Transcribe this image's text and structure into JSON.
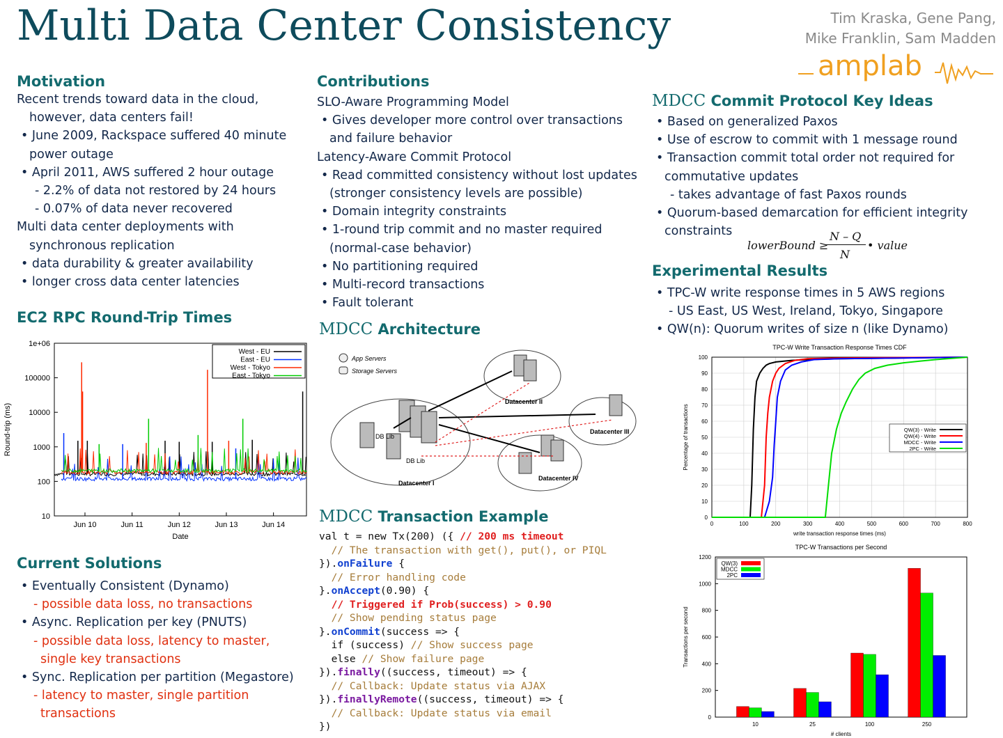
{
  "title": "Multi Data Center Consistency",
  "authors": [
    "Tim Kraska, Gene Pang,",
    "Mike Franklin, Sam Madden"
  ],
  "logo_text": "amplab",
  "motivation": {
    "heading": "Motivation",
    "lines": [
      "Recent trends toward data in the cloud,",
      "however, data centers fail!",
      "• June 2009, Rackspace suffered 40 minute",
      "power outage",
      "• April 2011, AWS suffered 2 hour outage",
      "- 2.2% of data not restored by 24 hours",
      "- 0.07% of data never recovered",
      "Multi data center deployments with",
      "synchronous replication",
      "• data durability & greater availability",
      "• longer cross data center latencies"
    ]
  },
  "ec2": {
    "heading": "EC2 RPC Round-Trip Times"
  },
  "current": {
    "heading": "Current Solutions",
    "items": [
      {
        "text": "• Eventually Consistent (Dynamo)",
        "red": false,
        "indent": 0
      },
      {
        "text": "- possible data loss, no transactions",
        "red": true,
        "indent": 1
      },
      {
        "text": "• Async. Replication per key (PNUTS)",
        "red": false,
        "indent": 0
      },
      {
        "text": "- possible data loss, latency to master,",
        "red": true,
        "indent": 1
      },
      {
        "text": "single key transactions",
        "red": true,
        "indent": 2
      },
      {
        "text": "• Sync. Replication per partition (Megastore)",
        "red": false,
        "indent": 0
      },
      {
        "text": "- latency to master, single partition",
        "red": true,
        "indent": 1
      },
      {
        "text": "transactions",
        "red": true,
        "indent": 2
      }
    ]
  },
  "contributions": {
    "heading": "Contributions",
    "lines": [
      "SLO-Aware Programming Model",
      "• Gives developer more control over transactions",
      "and failure behavior",
      "Latency-Aware Commit Protocol",
      "• Read committed consistency without lost updates",
      "(stronger consistency levels are possible)",
      "• Domain integrity constraints",
      "• 1-round trip commit and no master required",
      "(normal-case behavior)",
      "• No partitioning required",
      "• Multi-record transactions",
      "• Fault tolerant"
    ]
  },
  "architecture": {
    "heading_mdcc": "MDCC",
    "heading_rest": "Architecture",
    "legend": [
      "App Servers",
      "Storage Servers"
    ],
    "labels": [
      "DB Lib",
      "DB Lib",
      "Datacenter I",
      "Datacenter II",
      "Datacenter III",
      "Datacenter IV"
    ]
  },
  "txn": {
    "heading_mdcc": "MDCC",
    "heading_rest": "Transaction Example",
    "code": [
      [
        [
          "val t = new Tx(200) ({ ",
          ""
        ],
        [
          "// 200 ms timeout",
          "kw-red"
        ]
      ],
      [
        [
          "  // The transaction with get(), put(), or PIQL",
          "cmt"
        ]
      ],
      [
        [
          "}).",
          ""
        ],
        [
          "onFailure",
          "kw-blue"
        ],
        [
          " {",
          ""
        ]
      ],
      [
        [
          "  // Error handling code",
          "cmt"
        ]
      ],
      [
        [
          "}.",
          ""
        ],
        [
          "onAccept",
          "kw-blue"
        ],
        [
          "(0.90) {",
          ""
        ]
      ],
      [
        [
          "  // Triggered if Prob(success) > 0.90",
          "kw-red"
        ]
      ],
      [
        [
          "  // Show pending status page",
          "cmt"
        ]
      ],
      [
        [
          "}.",
          ""
        ],
        [
          "onCommit",
          "kw-blue"
        ],
        [
          "(success => {",
          ""
        ]
      ],
      [
        [
          "  if (success) ",
          ""
        ],
        [
          "// Show success page",
          "cmt"
        ]
      ],
      [
        [
          "  else ",
          ""
        ],
        [
          "// Show failure page",
          "cmt"
        ]
      ],
      [
        [
          "}).",
          ""
        ],
        [
          "finally",
          "kw-purple"
        ],
        [
          "((success, timeout) => {",
          ""
        ]
      ],
      [
        [
          "  // Callback: Update status via AJAX",
          "cmt"
        ]
      ],
      [
        [
          "}).",
          ""
        ],
        [
          "finallyRemote",
          "kw-purple"
        ],
        [
          "((success, timeout) => {",
          ""
        ]
      ],
      [
        [
          "  // Callback: Update status via email",
          "cmt"
        ]
      ],
      [
        [
          "})",
          ""
        ]
      ]
    ]
  },
  "keyideas": {
    "heading_mdcc": "MDCC",
    "heading_rest": "Commit Protocol Key Ideas",
    "lines": [
      "• Based on generalized Paxos",
      "• Use of escrow to commit with 1 message round",
      "• Transaction commit total order not required for",
      "commutative updates",
      "- takes advantage of fast Paxos rounds",
      "• Quorum-based demarcation for efficient integrity",
      "constraints"
    ],
    "formula": {
      "lhs": "lowerBound ≥",
      "num": "N – Q",
      "den": "N",
      "rhs": "• value"
    }
  },
  "results": {
    "heading": "Experimental Results",
    "lines": [
      "• TPC-W write response times in 5 AWS regions",
      "- US East, US West, Ireland, Tokyo, Singapore",
      "• QW(n): Quorum writes of size n (like Dynamo)"
    ]
  },
  "chart_data": [
    {
      "type": "line",
      "title": "",
      "xlabel": "Date",
      "ylabel": "Round-trip (ms)",
      "yscale": "log",
      "ylim": [
        10,
        1000000
      ],
      "y_ticks": [
        "10",
        "100",
        "1000",
        "10000",
        "100000",
        "1e+06"
      ],
      "x_ticks": [
        "Jun 10",
        "Jun 11",
        "Jun 12",
        "Jun 13",
        "Jun 14"
      ],
      "legend_position": "top-right",
      "series": [
        {
          "name": "West - EU",
          "color": "#000000",
          "baseline": 160,
          "spikes": [
            [
              9.85,
              1500
            ],
            [
              10.05,
              1500
            ],
            [
              11.7,
              1500
            ],
            [
              12.0,
              1400
            ],
            [
              12.7,
              1400
            ],
            [
              13.55,
              1600
            ],
            [
              14.62,
              40000
            ]
          ]
        },
        {
          "name": "East - EU",
          "color": "#0030ff",
          "baseline": 115,
          "spikes": [
            [
              9.55,
              2500
            ],
            [
              10.8,
              1200
            ],
            [
              13.2,
              900
            ]
          ]
        },
        {
          "name": "West - Tokyo",
          "color": "#ff2a00",
          "baseline": 180,
          "spikes": [
            [
              9.93,
              280000
            ],
            [
              9.95,
              40000
            ],
            [
              12.6,
              170000
            ],
            [
              13.05,
              1500
            ],
            [
              11.3,
              1300
            ]
          ]
        },
        {
          "name": "East - Tokyo",
          "color": "#00cc00",
          "baseline": 200,
          "spikes": [
            [
              11.35,
              6500
            ],
            [
              12.4,
              2200
            ],
            [
              13.35,
              6500
            ],
            [
              10.3,
              1200
            ]
          ]
        }
      ]
    },
    {
      "type": "line",
      "title": "TPC-W Write Transaction Response Times CDF",
      "xlabel": "write transaction response times (ms)",
      "ylabel": "Percentage of transactions",
      "xlim": [
        0,
        800
      ],
      "ylim": [
        0,
        100
      ],
      "x_ticks": [
        0,
        100,
        200,
        300,
        400,
        500,
        600,
        700,
        800
      ],
      "y_ticks": [
        0,
        10,
        20,
        30,
        40,
        50,
        60,
        70,
        80,
        90,
        100
      ],
      "legend_position": "right",
      "series": [
        {
          "name": "QW(3) - Write",
          "color": "#000000",
          "x": [
            0,
            120,
            125,
            130,
            135,
            140,
            150,
            160,
            170,
            180,
            200,
            250,
            300,
            400,
            800
          ],
          "y": [
            0,
            0,
            20,
            55,
            75,
            85,
            90,
            93,
            95,
            96,
            97,
            98,
            98.5,
            99,
            100
          ]
        },
        {
          "name": "QW(4) - Write",
          "color": "#ff0000",
          "x": [
            0,
            155,
            165,
            170,
            175,
            180,
            190,
            200,
            210,
            230,
            260,
            300,
            400,
            800
          ],
          "y": [
            0,
            0,
            20,
            50,
            65,
            75,
            85,
            90,
            93,
            96,
            98,
            99,
            99.5,
            100
          ]
        },
        {
          "name": "MDCC - Write",
          "color": "#0000ff",
          "x": [
            0,
            165,
            180,
            190,
            195,
            200,
            205,
            215,
            230,
            250,
            280,
            320,
            400,
            800
          ],
          "y": [
            0,
            0,
            10,
            25,
            45,
            60,
            75,
            85,
            92,
            95,
            97,
            98.5,
            99,
            100
          ]
        },
        {
          "name": "2PC - Write",
          "color": "#00dd00",
          "x": [
            0,
            355,
            365,
            375,
            390,
            405,
            420,
            440,
            460,
            480,
            510,
            550,
            600,
            650,
            700,
            800
          ],
          "y": [
            0,
            0,
            20,
            40,
            55,
            65,
            72,
            80,
            86,
            90,
            93,
            95,
            96.5,
            97.5,
            98.5,
            100
          ]
        }
      ]
    },
    {
      "type": "bar",
      "title": "TPC-W Transactions per Second",
      "xlabel": "# clients",
      "ylabel": "Transactions per second",
      "ylim": [
        0,
        1200
      ],
      "y_ticks": [
        0,
        200,
        400,
        600,
        800,
        1000,
        1200
      ],
      "categories": [
        "10",
        "25",
        "100",
        "250"
      ],
      "legend_position": "top-left",
      "series": [
        {
          "name": "QW(3)",
          "color": "#ff0000",
          "values": [
            80,
            215,
            480,
            1115
          ]
        },
        {
          "name": "MDCC",
          "color": "#00ee00",
          "values": [
            70,
            185,
            470,
            930
          ]
        },
        {
          "name": "2PC",
          "color": "#0000ff",
          "values": [
            42,
            115,
            318,
            462
          ]
        }
      ]
    }
  ]
}
